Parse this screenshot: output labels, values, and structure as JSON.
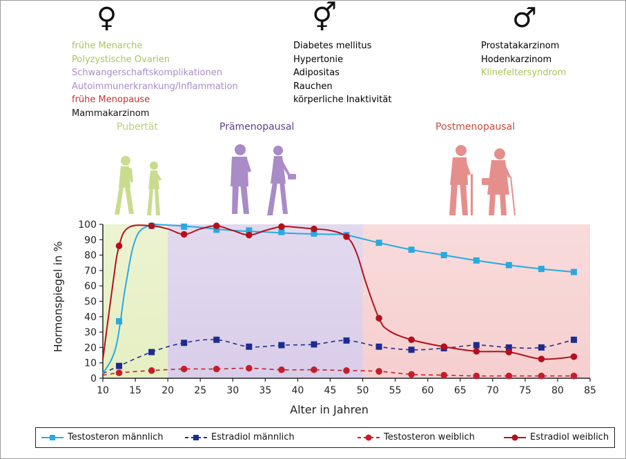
{
  "colors": {
    "female_green": "#a8c45a",
    "female_purple": "#a98bc7",
    "female_red": "#c83232",
    "black": "#111111",
    "testosterone_male": "#29a9e0",
    "estradiol_male": "#1d2c8f",
    "testosterone_female": "#c41e2a",
    "estradiol_female": "#b3101c",
    "puberty_text": "#b7cf78",
    "premeno_text": "#5c3f8f",
    "postmeno_text": "#c24b3d"
  },
  "header": {
    "groups": [
      {
        "symbol": "♀",
        "symbol_name": "female-symbol-icon",
        "items": [
          {
            "text": "frühe Menarche",
            "color": "#a8c45a"
          },
          {
            "text": "Polyzystische Ovarien",
            "color": "#a8c45a"
          },
          {
            "text": "Schwangerschaftskomplikationen",
            "color": "#a98bc7"
          },
          {
            "text": "Autoimmunerkrankung/Inflammation",
            "color": "#a98bc7"
          },
          {
            "text": "frühe Menopause",
            "color": "#c83232"
          },
          {
            "text": "Mammakarzinom",
            "color": "#111111"
          }
        ]
      },
      {
        "symbol": "⚥",
        "symbol_name": "male-female-symbol-icon",
        "items": [
          {
            "text": "Diabetes mellitus",
            "color": "#111111"
          },
          {
            "text": "Hypertonie",
            "color": "#111111"
          },
          {
            "text": "Adipositas",
            "color": "#111111"
          },
          {
            "text": "Rauchen",
            "color": "#111111"
          },
          {
            "text": "körperliche Inaktivität",
            "color": "#111111"
          }
        ]
      },
      {
        "symbol": "♂",
        "symbol_name": "male-symbol-icon",
        "items": [
          {
            "text": "Prostatakarzinom",
            "color": "#111111"
          },
          {
            "text": "Hodenkarzinom",
            "color": "#111111"
          },
          {
            "text": "Klinefeltersyndrom",
            "color": "#a8c45a"
          }
        ]
      }
    ]
  },
  "phases": {
    "puberty": "Pubertät",
    "premenopausal": "Prämenopausal",
    "postmenopausal": "Postmenopausal"
  },
  "chart_data": {
    "type": "line",
    "title": "",
    "xlabel": "Alter in Jahren",
    "ylabel": "Hormonspiegel in %",
    "xlim": [
      10,
      85
    ],
    "ylim": [
      0,
      100
    ],
    "xticks": [
      10,
      15,
      20,
      25,
      30,
      35,
      40,
      45,
      50,
      55,
      60,
      65,
      70,
      75,
      80,
      85
    ],
    "yticks": [
      0,
      10,
      20,
      30,
      40,
      50,
      60,
      70,
      80,
      90,
      100
    ],
    "grid": false,
    "shaded_regions": [
      {
        "name": "Pubertät",
        "x": [
          10,
          20
        ],
        "color": "#e6efc2"
      },
      {
        "name": "Prämenopausal",
        "x": [
          20,
          50
        ],
        "color": "#d9cde9"
      },
      {
        "name": "Postmenopausal",
        "x": [
          50,
          85
        ],
        "color": "#f6cfcf"
      }
    ],
    "series": [
      {
        "name": "Testosteron männlich",
        "style": "solid",
        "marker": "square",
        "color": "#29a9e0",
        "curve": [
          [
            10,
            3
          ],
          [
            12,
            20
          ],
          [
            13.5,
            60
          ],
          [
            15,
            90
          ],
          [
            17,
            99
          ],
          [
            20,
            99.5
          ],
          [
            25,
            98
          ],
          [
            30,
            96
          ],
          [
            35,
            95
          ],
          [
            40,
            94
          ],
          [
            45,
            93.5
          ],
          [
            47.5,
            93
          ],
          [
            52.5,
            88
          ],
          [
            57.5,
            83.5
          ],
          [
            62.5,
            80
          ],
          [
            67.5,
            76.5
          ],
          [
            72.5,
            73.5
          ],
          [
            77.5,
            71
          ],
          [
            82.5,
            69
          ]
        ],
        "markers": [
          [
            12.5,
            37
          ],
          [
            17.5,
            99
          ],
          [
            22.5,
            98.5
          ],
          [
            27.5,
            96.5
          ],
          [
            32.5,
            96
          ],
          [
            37.5,
            95
          ],
          [
            42.5,
            94
          ],
          [
            47.5,
            93
          ],
          [
            52.5,
            88
          ],
          [
            57.5,
            83.5
          ],
          [
            62.5,
            80
          ],
          [
            67.5,
            76.5
          ],
          [
            72.5,
            73.5
          ],
          [
            77.5,
            71
          ],
          [
            82.5,
            69
          ]
        ]
      },
      {
        "name": "Estradiol männlich",
        "style": "dashed",
        "marker": "square",
        "color": "#1d2c8f",
        "curve": [
          [
            10,
            3
          ],
          [
            12.5,
            8
          ],
          [
            17.5,
            17
          ],
          [
            22.5,
            23
          ],
          [
            27.5,
            25
          ],
          [
            32.5,
            20.5
          ],
          [
            37.5,
            21.5
          ],
          [
            42.5,
            22
          ],
          [
            47.5,
            24.5
          ],
          [
            52.5,
            20.5
          ],
          [
            57.5,
            18.5
          ],
          [
            62.5,
            19.5
          ],
          [
            67.5,
            21.5
          ],
          [
            72.5,
            20
          ],
          [
            77.5,
            20
          ],
          [
            82.5,
            25
          ]
        ],
        "markers": [
          [
            12.5,
            8
          ],
          [
            17.5,
            17
          ],
          [
            22.5,
            23
          ],
          [
            27.5,
            25
          ],
          [
            32.5,
            20.5
          ],
          [
            37.5,
            21.5
          ],
          [
            42.5,
            22
          ],
          [
            47.5,
            24.5
          ],
          [
            52.5,
            20.5
          ],
          [
            57.5,
            18.5
          ],
          [
            62.5,
            19.5
          ],
          [
            67.5,
            21.5
          ],
          [
            72.5,
            20
          ],
          [
            77.5,
            20
          ],
          [
            82.5,
            25
          ]
        ]
      },
      {
        "name": "Testosteron weiblich",
        "style": "dashed",
        "marker": "circle",
        "color": "#c41e2a",
        "curve": [
          [
            10,
            2
          ],
          [
            12.5,
            3.5
          ],
          [
            17.5,
            5
          ],
          [
            22.5,
            6
          ],
          [
            27.5,
            6
          ],
          [
            32.5,
            6.5
          ],
          [
            37.5,
            5.5
          ],
          [
            42.5,
            5.5
          ],
          [
            47.5,
            5
          ],
          [
            52.5,
            4.5
          ],
          [
            57.5,
            2.5
          ],
          [
            62.5,
            2
          ],
          [
            67.5,
            1.5
          ],
          [
            72.5,
            1.5
          ],
          [
            77.5,
            1.5
          ],
          [
            82.5,
            1.5
          ]
        ],
        "markers": [
          [
            12.5,
            3.5
          ],
          [
            17.5,
            5
          ],
          [
            22.5,
            6
          ],
          [
            27.5,
            6
          ],
          [
            32.5,
            6.5
          ],
          [
            37.5,
            5.5
          ],
          [
            42.5,
            5.5
          ],
          [
            47.5,
            5
          ],
          [
            52.5,
            4.5
          ],
          [
            57.5,
            2.5
          ],
          [
            62.5,
            2
          ],
          [
            67.5,
            1.5
          ],
          [
            72.5,
            1.5
          ],
          [
            77.5,
            1.5
          ],
          [
            82.5,
            1.5
          ]
        ]
      },
      {
        "name": "Estradiol weiblich",
        "style": "solid",
        "marker": "circle",
        "color": "#b3101c",
        "curve": [
          [
            10,
            12
          ],
          [
            11.5,
            60
          ],
          [
            12.5,
            86
          ],
          [
            14,
            98
          ],
          [
            17.5,
            99
          ],
          [
            20,
            97
          ],
          [
            22.5,
            93.5
          ],
          [
            25,
            97
          ],
          [
            27.5,
            99
          ],
          [
            30,
            96
          ],
          [
            32.5,
            93
          ],
          [
            35,
            96
          ],
          [
            37.5,
            98.5
          ],
          [
            40,
            98
          ],
          [
            42.5,
            97
          ],
          [
            45,
            96
          ],
          [
            47.5,
            92
          ],
          [
            49,
            82
          ],
          [
            50.5,
            62
          ],
          [
            52.5,
            39
          ],
          [
            54,
            31
          ],
          [
            57.5,
            25
          ],
          [
            62.5,
            20.5
          ],
          [
            67.5,
            17.5
          ],
          [
            72.5,
            17
          ],
          [
            77.5,
            12.5
          ],
          [
            82.5,
            14
          ]
        ],
        "markers": [
          [
            12.5,
            86
          ],
          [
            17.5,
            99
          ],
          [
            22.5,
            93.5
          ],
          [
            27.5,
            99
          ],
          [
            32.5,
            93
          ],
          [
            37.5,
            98.5
          ],
          [
            42.5,
            97
          ],
          [
            47.5,
            92
          ],
          [
            52.5,
            39
          ],
          [
            57.5,
            25
          ],
          [
            62.5,
            20.5
          ],
          [
            67.5,
            17.5
          ],
          [
            72.5,
            17
          ],
          [
            77.5,
            12.5
          ],
          [
            82.5,
            14
          ]
        ]
      }
    ]
  }
}
